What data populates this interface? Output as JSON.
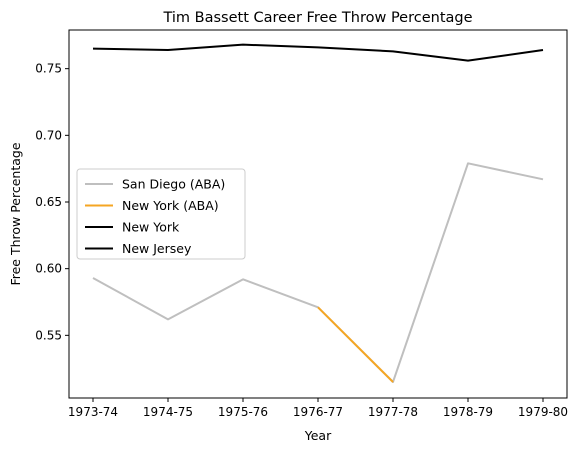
{
  "chart_data": {
    "type": "line",
    "title": "Tim Bassett Career Free Throw Percentage",
    "xlabel": "Year",
    "ylabel": "Free Throw Percentage",
    "categories": [
      "1973-74",
      "1974-75",
      "1975-76",
      "1976-77",
      "1977-78",
      "1978-79",
      "1979-80"
    ],
    "ylim": [
      0.503,
      0.779
    ],
    "yticks": [
      "0.55",
      "0.60",
      "0.65",
      "0.70",
      "0.75"
    ],
    "ytick_values": [
      0.55,
      0.6,
      0.65,
      0.7,
      0.75
    ],
    "grid": false,
    "legend_position": "center-left",
    "series": [
      {
        "name": "San Diego (ABA)",
        "color": "#bfbfbf",
        "values": [
          0.593,
          0.562,
          0.592,
          0.571,
          0.515,
          0.679,
          0.667
        ]
      },
      {
        "name": "New York (ABA)",
        "color": "#f5a623",
        "values": [
          null,
          null,
          null,
          0.571,
          0.515,
          null,
          null
        ]
      },
      {
        "name": "New York",
        "color": "#000000",
        "values": [
          0.765,
          0.764,
          0.768,
          0.766,
          0.763,
          0.756,
          0.764
        ]
      },
      {
        "name": "New Jersey",
        "color": "#000000",
        "values": [
          null,
          null,
          null,
          null,
          null,
          null,
          null
        ]
      }
    ]
  }
}
